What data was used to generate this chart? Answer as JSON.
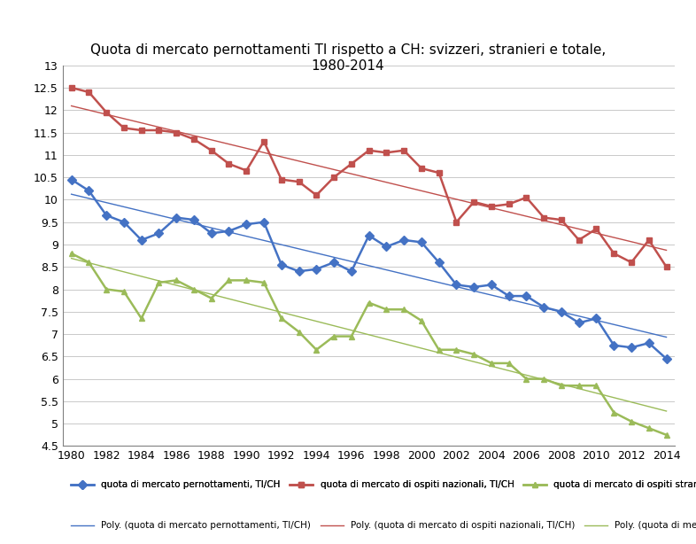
{
  "title": "Quota di mercato pernottamenti TI rispetto a CH: svizzeri, stranieri e totale,\n1980-2014",
  "years": [
    1980,
    1981,
    1982,
    1983,
    1984,
    1985,
    1986,
    1987,
    1988,
    1989,
    1990,
    1991,
    1992,
    1993,
    1994,
    1995,
    1996,
    1997,
    1998,
    1999,
    2000,
    2001,
    2002,
    2003,
    2004,
    2005,
    2006,
    2007,
    2008,
    2009,
    2010,
    2011,
    2012,
    2013,
    2014
  ],
  "total": [
    10.45,
    10.2,
    9.65,
    9.5,
    9.1,
    9.25,
    9.6,
    9.55,
    9.25,
    9.3,
    9.45,
    9.5,
    8.55,
    8.4,
    8.45,
    8.6,
    8.4,
    9.2,
    8.95,
    9.1,
    9.05,
    8.6,
    8.1,
    8.05,
    8.1,
    7.85,
    7.85,
    7.6,
    7.5,
    7.25,
    7.35,
    6.75,
    6.7,
    6.8,
    6.45
  ],
  "nazionali": [
    12.5,
    12.4,
    11.95,
    11.6,
    11.55,
    11.55,
    11.5,
    11.35,
    11.1,
    10.8,
    10.65,
    11.3,
    10.45,
    10.4,
    10.1,
    10.5,
    10.8,
    11.1,
    11.05,
    11.1,
    10.7,
    10.6,
    9.5,
    9.95,
    9.85,
    9.9,
    10.05,
    9.6,
    9.55,
    9.1,
    9.35,
    8.8,
    8.6,
    9.1,
    8.5
  ],
  "stranieri": [
    8.8,
    8.6,
    8.0,
    7.95,
    7.35,
    8.15,
    8.2,
    8.0,
    7.8,
    8.2,
    8.2,
    8.15,
    7.35,
    7.05,
    6.65,
    6.95,
    6.95,
    7.7,
    7.55,
    7.55,
    7.3,
    6.65,
    6.65,
    6.55,
    6.35,
    6.35,
    6.0,
    6.0,
    5.85,
    5.85,
    5.85,
    5.25,
    5.05,
    4.9,
    4.75
  ],
  "color_total": "#4472C4",
  "color_nazionali": "#C0504D",
  "color_stranieri": "#9BBB59",
  "ylim": [
    4.5,
    13.0
  ],
  "ytick_vals": [
    4.5,
    5.0,
    5.5,
    6.0,
    6.5,
    7.0,
    7.5,
    8.0,
    8.5,
    9.0,
    9.5,
    10.0,
    10.5,
    11.0,
    11.5,
    12.0,
    12.5,
    13.0
  ],
  "ytick_labels": [
    "4.5",
    "5",
    "5.5",
    "6",
    "6.5",
    "7",
    "7.5",
    "8",
    "8.5",
    "9",
    "9.5",
    "10",
    "10.5",
    "11",
    "11.5",
    "12",
    "12.5",
    "13"
  ],
  "legend_total": "quota di mercato pernottamenti, TI/CH",
  "legend_nazionali": "quota di mercato di ospiti nazionali, TI/CH",
  "legend_stranieri": "quota di mercato di ospiti stranieri, TI/CH",
  "legend_poly_total": "Poly. (quota di mercato pernottamenti, TI/CH)",
  "legend_poly_nazionali": "Poly. (quota di mercato di ospiti nazionali, TI/CH)",
  "legend_poly_stranieri": "Poly. (quota di mercato di ospiti stranieri, TI/CH)",
  "bg_color": "#FFFFFF",
  "plot_bg_color": "#FFFFFF"
}
